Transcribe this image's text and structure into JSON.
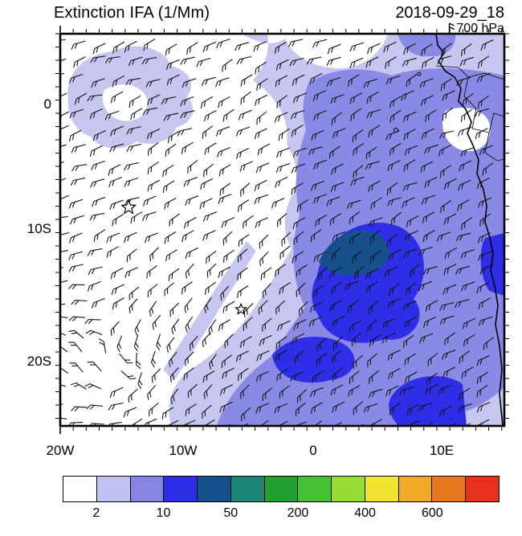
{
  "header": {
    "title": "Extinction IFA (1/Mm)",
    "datetime": "2018-09-29_18",
    "level": "700 hPa"
  },
  "axes": {
    "x_ticks": [
      "20W",
      "10W",
      "0",
      "10E"
    ],
    "y_ticks": [
      "0",
      "10S",
      "20S"
    ]
  },
  "colorbar": {
    "colors": [
      "#ffffff",
      "#c2c2f0",
      "#8585e6",
      "#2e2ee8",
      "#16508c",
      "#1a8476",
      "#22a032",
      "#44c232",
      "#96dc32",
      "#f0e632",
      "#f0aa28",
      "#e87820",
      "#e63218"
    ],
    "labels": [
      "2",
      "10",
      "50",
      "200",
      "400",
      "600"
    ]
  },
  "palette": {
    "shade_light": "#c6c6f0",
    "shade_mid": "#8a8ae6",
    "shade_strong": "#2e2ee8",
    "shade_dark": "#16508c",
    "hole_white": "#ffffff",
    "barb": "#141414",
    "coast": "#000000"
  },
  "chart_data": {
    "type": "heatmap",
    "subtype": "filled-contour geographic map with wind barbs",
    "title": "Extinction IFA (1/Mm)",
    "valid_time": "2018-09-29_18",
    "pressure_level": "700 hPa",
    "x_axis": {
      "label": "longitude",
      "tick_labels": [
        "20W",
        "10W",
        "0",
        "10E"
      ]
    },
    "y_axis": {
      "label": "latitude",
      "tick_labels": [
        "0",
        "10S",
        "20S"
      ]
    },
    "colorbar_labeled_levels": [
      2,
      10,
      50,
      200,
      400,
      600
    ],
    "colorbar_colors": [
      "#ffffff",
      "#c2c2f0",
      "#8585e6",
      "#2e2ee8",
      "#16508c",
      "#1a8476",
      "#22a032",
      "#44c232",
      "#96dc32",
      "#f0e632",
      "#f0aa28",
      "#e87820",
      "#e63218"
    ],
    "shading_observed": "Extinction plume (2-200 1/Mm) over central/eastern South Atlantic toward African coast; strongest core (50-200) near 5W-10E, 12S-20S; clear air to the west and southwest",
    "overlays": [
      "700 hPa wind barbs",
      "African coastline",
      "country borders",
      "star markers"
    ],
    "markers": [
      {
        "symbol": "star",
        "approx_position": "15W, 8S",
        "fx": 0.154,
        "fy": 0.443,
        "size": 9
      },
      {
        "symbol": "star",
        "approx_position": "6W, 15.5S",
        "fx": 0.407,
        "fy": 0.703,
        "size": 7
      }
    ],
    "flow_features": "closed circulation (gyre) in southwest corner near 17W, 21S"
  }
}
